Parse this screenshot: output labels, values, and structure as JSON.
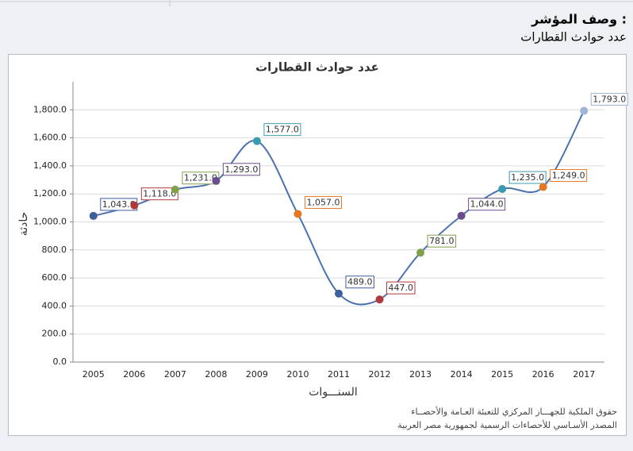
{
  "header": {
    "title": "وصف المؤشر :",
    "subtitle": "عدد حوادث القطارات"
  },
  "source_notes": [
    "حقوق الملكية للجهـــاز المركزي للتعبئة العـامة والأحصــاء",
    "المصدر الأسـاسي للأحصاءات الرسمية لجمهورية مصر العربية"
  ],
  "chart_data": {
    "type": "line",
    "title": "عدد حوادث القطارات",
    "x_label": "السنـــوات",
    "y_label": "حادثة",
    "categories": [
      "2005",
      "2006",
      "2007",
      "2008",
      "2009",
      "2010",
      "2011",
      "2012",
      "2013",
      "2014",
      "2015",
      "2016",
      "2017"
    ],
    "series": [
      {
        "name": "عدد حوادث القطارات",
        "color": "#4a72b0",
        "values": [
          1043,
          1118,
          1231,
          1293,
          1577,
          1057,
          489,
          447,
          781,
          1044,
          1235,
          1249,
          1793
        ],
        "value_labels": [
          "1,043.0",
          "1,118.0",
          "1,231.0",
          "1,293.0",
          "1,577.0",
          "1,057.0",
          "489.0",
          "447.0",
          "781.0",
          "1,044.0",
          "1,235.0",
          "1,249.0",
          "1,793.0"
        ],
        "point_colors": [
          "#3d5f9a",
          "#b03a3a",
          "#82a04a",
          "#6b4c8d",
          "#3a9bb0",
          "#e87722",
          "#3d5f9a",
          "#b03a3a",
          "#82a04a",
          "#6b4c8d",
          "#3a9bb0",
          "#e87722",
          "#9fb4d6"
        ]
      }
    ],
    "ylim": [
      0,
      2000
    ],
    "yticks": [
      {
        "value": 0,
        "label": "0.0"
      },
      {
        "value": 200,
        "label": "200.0"
      },
      {
        "value": 400,
        "label": "400.0"
      },
      {
        "value": 600,
        "label": "600.0"
      },
      {
        "value": 800,
        "label": "800.0"
      },
      {
        "value": 1000,
        "label": "1,000.0"
      },
      {
        "value": 1200,
        "label": "1,200.0"
      },
      {
        "value": 1400,
        "label": "1,400.0"
      },
      {
        "value": 1600,
        "label": "1,600.0"
      },
      {
        "value": 1800,
        "label": "1,800.0"
      }
    ],
    "grid": true
  }
}
